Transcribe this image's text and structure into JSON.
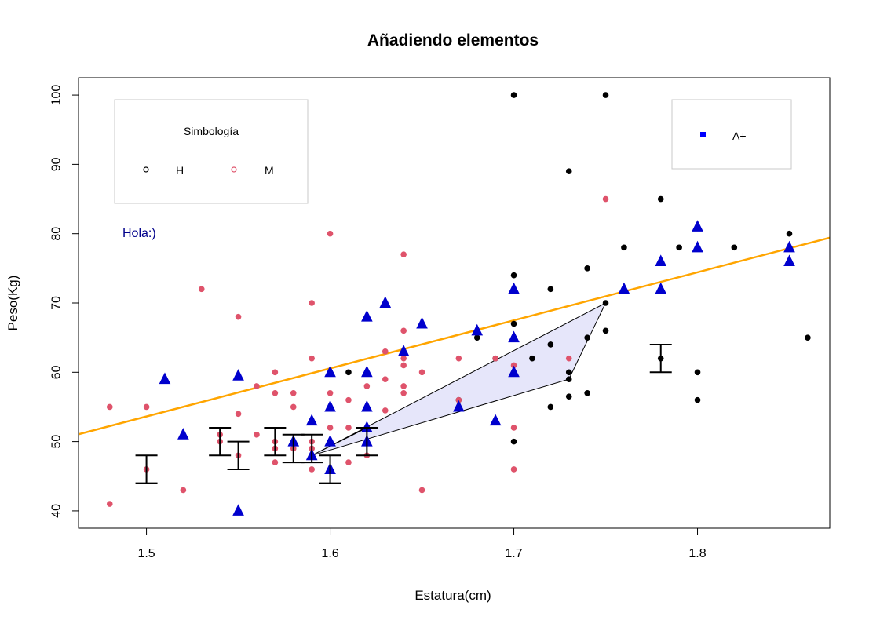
{
  "chart_data": {
    "type": "scatter",
    "title": "Añadiendo elementos",
    "xlabel": "Estatura(cm)",
    "ylabel": "Peso(Kg)",
    "xlim": [
      1.463,
      1.872
    ],
    "ylim": [
      37.5,
      102.5
    ],
    "x_ticks": [
      1.5,
      1.6,
      1.7,
      1.8
    ],
    "x_tick_labels": [
      "1.5",
      "1.6",
      "1.7",
      "1.8"
    ],
    "y_ticks": [
      40,
      50,
      60,
      70,
      80,
      90,
      100
    ],
    "y_tick_labels": [
      "40",
      "50",
      "60",
      "70",
      "80",
      "90",
      "100"
    ],
    "colors": {
      "H": "#000000",
      "M": "#df536b",
      "triangles": "#0000cd",
      "line": "#ffa500",
      "polygon_fill": "#e6e6fa",
      "annotation": "#00008b",
      "legend_square": "#0000ff"
    },
    "series": [
      {
        "name": "H",
        "marker": "circle",
        "points": [
          [
            1.61,
            60
          ],
          [
            1.67,
            56
          ],
          [
            1.68,
            65
          ],
          [
            1.69,
            62
          ],
          [
            1.7,
            100
          ],
          [
            1.7,
            74
          ],
          [
            1.7,
            67
          ],
          [
            1.7,
            65
          ],
          [
            1.7,
            50
          ],
          [
            1.71,
            62
          ],
          [
            1.72,
            72
          ],
          [
            1.72,
            64
          ],
          [
            1.72,
            55
          ],
          [
            1.73,
            89
          ],
          [
            1.73,
            60
          ],
          [
            1.73,
            59
          ],
          [
            1.73,
            56.5
          ],
          [
            1.74,
            75
          ],
          [
            1.74,
            65
          ],
          [
            1.74,
            57
          ],
          [
            1.75,
            100
          ],
          [
            1.75,
            70
          ],
          [
            1.75,
            66
          ],
          [
            1.76,
            78
          ],
          [
            1.78,
            85
          ],
          [
            1.78,
            62
          ],
          [
            1.79,
            78
          ],
          [
            1.8,
            60
          ],
          [
            1.8,
            56
          ],
          [
            1.82,
            78
          ],
          [
            1.85,
            80
          ],
          [
            1.85,
            76
          ],
          [
            1.86,
            65
          ],
          [
            1.62,
            52
          ]
        ]
      },
      {
        "name": "M",
        "marker": "circle",
        "points": [
          [
            1.48,
            55
          ],
          [
            1.48,
            41
          ],
          [
            1.5,
            55
          ],
          [
            1.5,
            46
          ],
          [
            1.52,
            43
          ],
          [
            1.53,
            72
          ],
          [
            1.54,
            51
          ],
          [
            1.54,
            50
          ],
          [
            1.55,
            68
          ],
          [
            1.55,
            54
          ],
          [
            1.55,
            48
          ],
          [
            1.56,
            58
          ],
          [
            1.56,
            51
          ],
          [
            1.57,
            60
          ],
          [
            1.57,
            57
          ],
          [
            1.57,
            50
          ],
          [
            1.57,
            49
          ],
          [
            1.57,
            47
          ],
          [
            1.58,
            57
          ],
          [
            1.58,
            55
          ],
          [
            1.58,
            49
          ],
          [
            1.59,
            70
          ],
          [
            1.59,
            62
          ],
          [
            1.59,
            50
          ],
          [
            1.59,
            49
          ],
          [
            1.59,
            46
          ],
          [
            1.6,
            80
          ],
          [
            1.6,
            57
          ],
          [
            1.6,
            52
          ],
          [
            1.61,
            56
          ],
          [
            1.61,
            52
          ],
          [
            1.61,
            47
          ],
          [
            1.62,
            58
          ],
          [
            1.62,
            52
          ],
          [
            1.62,
            48
          ],
          [
            1.63,
            63
          ],
          [
            1.63,
            59
          ],
          [
            1.63,
            54.5
          ],
          [
            1.64,
            77
          ],
          [
            1.64,
            66
          ],
          [
            1.64,
            62
          ],
          [
            1.64,
            61
          ],
          [
            1.64,
            58
          ],
          [
            1.64,
            57
          ],
          [
            1.65,
            60
          ],
          [
            1.65,
            43
          ],
          [
            1.67,
            62
          ],
          [
            1.67,
            56
          ],
          [
            1.69,
            62
          ],
          [
            1.7,
            61
          ],
          [
            1.7,
            52
          ],
          [
            1.7,
            46
          ],
          [
            1.73,
            62
          ],
          [
            1.75,
            85
          ]
        ]
      },
      {
        "name": "triangles",
        "marker": "triangle",
        "points": [
          [
            1.51,
            59
          ],
          [
            1.52,
            51
          ],
          [
            1.55,
            59.5
          ],
          [
            1.55,
            40
          ],
          [
            1.58,
            50
          ],
          [
            1.59,
            53
          ],
          [
            1.59,
            48
          ],
          [
            1.6,
            60
          ],
          [
            1.6,
            55
          ],
          [
            1.6,
            50
          ],
          [
            1.6,
            46
          ],
          [
            1.62,
            68
          ],
          [
            1.62,
            60
          ],
          [
            1.62,
            55
          ],
          [
            1.62,
            52
          ],
          [
            1.62,
            50
          ],
          [
            1.63,
            70
          ],
          [
            1.64,
            63
          ],
          [
            1.65,
            67
          ],
          [
            1.67,
            55
          ],
          [
            1.68,
            66
          ],
          [
            1.69,
            53
          ],
          [
            1.7,
            72
          ],
          [
            1.7,
            65
          ],
          [
            1.7,
            60
          ],
          [
            1.76,
            72
          ],
          [
            1.78,
            76
          ],
          [
            1.78,
            72
          ],
          [
            1.8,
            81
          ],
          [
            1.8,
            78
          ],
          [
            1.85,
            78
          ],
          [
            1.85,
            76
          ]
        ]
      }
    ],
    "regression_line": {
      "intercept": -50.4,
      "slope": 69.35
    },
    "polygon": [
      [
        1.59,
        48
      ],
      [
        1.75,
        70
      ],
      [
        1.73,
        59
      ],
      [
        1.59,
        48
      ],
      [
        1.62,
        52
      ]
    ],
    "error_bars": [
      {
        "x": 1.5,
        "low": 44,
        "high": 48
      },
      {
        "x": 1.54,
        "low": 48,
        "high": 52
      },
      {
        "x": 1.55,
        "low": 46,
        "high": 50
      },
      {
        "x": 1.57,
        "low": 48,
        "high": 52
      },
      {
        "x": 1.58,
        "low": 47,
        "high": 51
      },
      {
        "x": 1.59,
        "low": 47,
        "high": 51
      },
      {
        "x": 1.6,
        "low": 44,
        "high": 48
      },
      {
        "x": 1.62,
        "low": 48,
        "high": 52
      },
      {
        "x": 1.78,
        "low": 60,
        "high": 64
      }
    ],
    "legend_1": {
      "title": "Simbología",
      "entries": [
        {
          "label": "H",
          "marker": "open-circle",
          "color": "#000000"
        },
        {
          "label": "M",
          "marker": "open-circle",
          "color": "#df536b"
        }
      ],
      "position": "top-left"
    },
    "legend_2": {
      "entries": [
        {
          "label": "A+",
          "marker": "square",
          "color": "#0000ff"
        }
      ],
      "position": "top-right"
    },
    "annotation": {
      "text": "Hola:)",
      "x": 1.495,
      "y": 80
    }
  }
}
